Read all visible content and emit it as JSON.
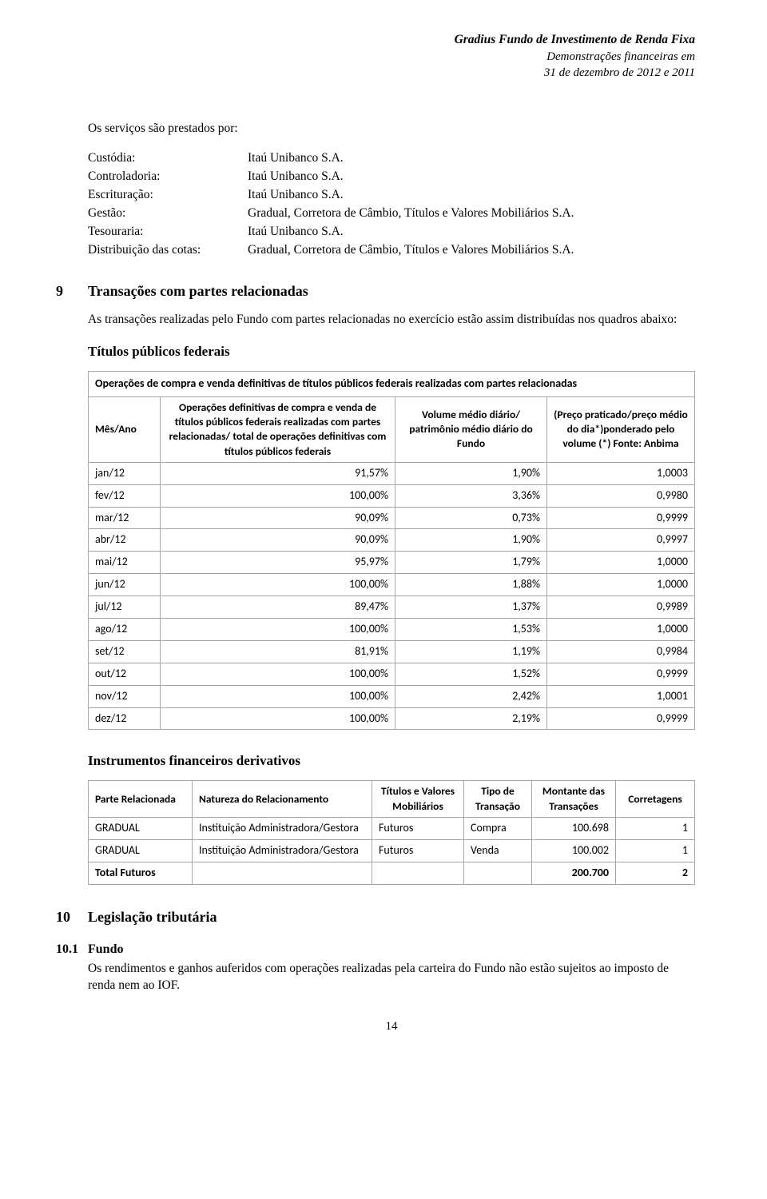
{
  "header": {
    "title": "Gradius Fundo de Investimento de Renda Fixa",
    "subtitle1": "Demonstrações financeiras em",
    "subtitle2": "31 de dezembro de 2012 e 2011"
  },
  "intro": "Os serviços são prestados por:",
  "providers": [
    {
      "label": "Custódia:",
      "value": "Itaú Unibanco S.A."
    },
    {
      "label": "Controladoria:",
      "value": "Itaú Unibanco S.A."
    },
    {
      "label": "Escrituração:",
      "value": "Itaú Unibanco S.A."
    },
    {
      "label": "Gestão:",
      "value": "Gradual, Corretora de Câmbio, Títulos e Valores Mobiliários S.A."
    },
    {
      "label": "Tesouraria:",
      "value": "Itaú Unibanco S.A."
    },
    {
      "label": "Distribuição das cotas:",
      "value": "Gradual, Corretora de Câmbio, Títulos e Valores Mobiliários S.A."
    }
  ],
  "section9": {
    "num": "9",
    "title": "Transações com partes relacionadas",
    "body": "As transações realizadas pelo Fundo com partes relacionadas no exercício estão assim distribuídas nos quadros abaixo:",
    "sub1": "Títulos públicos federais",
    "sub2": "Instrumentos financeiros derivativos"
  },
  "table1": {
    "caption": "Operações de compra e venda definitivas de títulos públicos federais realizadas com partes relacionadas",
    "columns": [
      "Mês/Ano",
      "Operações definitivas de compra e venda de títulos públicos federais realizadas com partes relacionadas/ total de operações definitivas com títulos públicos federais",
      "Volume médio diário/ patrimônio médio diário do Fundo",
      "(Preço praticado/preço médio do dia*)ponderado pelo volume (*) Fonte: Anbima"
    ],
    "rows": [
      [
        "jan/12",
        "91,57%",
        "1,90%",
        "1,0003"
      ],
      [
        "fev/12",
        "100,00%",
        "3,36%",
        "0,9980"
      ],
      [
        "mar/12",
        "90,09%",
        "0,73%",
        "0,9999"
      ],
      [
        "abr/12",
        "90,09%",
        "1,90%",
        "0,9997"
      ],
      [
        "mai/12",
        "95,97%",
        "1,79%",
        "1,0000"
      ],
      [
        "jun/12",
        "100,00%",
        "1,88%",
        "1,0000"
      ],
      [
        "jul/12",
        "89,47%",
        "1,37%",
        "0,9989"
      ],
      [
        "ago/12",
        "100,00%",
        "1,53%",
        "1,0000"
      ],
      [
        "set/12",
        "81,91%",
        "1,19%",
        "0,9984"
      ],
      [
        "out/12",
        "100,00%",
        "1,52%",
        "0,9999"
      ],
      [
        "nov/12",
        "100,00%",
        "2,42%",
        "1,0001"
      ],
      [
        "dez/12",
        "100,00%",
        "2,19%",
        "0,9999"
      ]
    ]
  },
  "table2": {
    "columns": [
      "Parte Relacionada",
      "Natureza do Relacionamento",
      "Títulos e Valores Mobiliários",
      "Tipo de Transação",
      "Montante das Transações",
      "Corretagens"
    ],
    "rows": [
      [
        "GRADUAL",
        "Instituição Administradora/Gestora",
        "Futuros",
        "Compra",
        "100.698",
        "1"
      ],
      [
        "GRADUAL",
        "Instituição Administradora/Gestora",
        "Futuros",
        "Venda",
        "100.002",
        "1"
      ]
    ],
    "total": [
      "Total Futuros",
      "",
      "",
      "",
      "200.700",
      "2"
    ]
  },
  "section10": {
    "num": "10",
    "title": "Legislação tributária"
  },
  "section10_1": {
    "num": "10.1",
    "title": "Fundo",
    "body": "Os rendimentos e ganhos auferidos com operações realizadas pela carteira do Fundo não estão sujeitos ao imposto de renda nem ao IOF."
  },
  "pageNum": "14"
}
